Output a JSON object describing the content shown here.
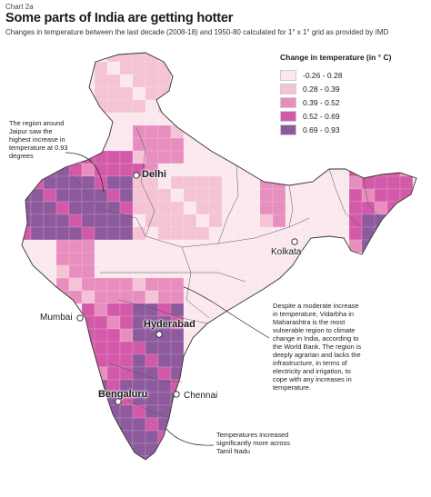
{
  "header": {
    "kicker": "Chart 2a",
    "title": "Some parts of India are getting hotter",
    "subtitle": "Changes in temperature between the last decade (2008-18) and 1950-80 calculated for 1° x 1° grid as provided by IMD"
  },
  "legend": {
    "title": "Change in temperature (in ° C)",
    "items": [
      {
        "label": "-0.26 - 0.28",
        "color": "#fbe8ee"
      },
      {
        "label": "0.28 - 0.39",
        "color": "#f4c3d6"
      },
      {
        "label": "0.39 - 0.52",
        "color": "#e88ebf"
      },
      {
        "label": "0.52 - 0.69",
        "color": "#d35aa9"
      },
      {
        "label": "0.69 - 0.93",
        "color": "#8e5a9e"
      }
    ]
  },
  "cities": {
    "delhi": "Delhi",
    "kolkata": "Kolkata",
    "mumbai": "Mumbai",
    "hyderabad": "Hyderabad",
    "bengaluru": "Bengaluru",
    "chennai": "Chennai"
  },
  "annotations": {
    "jaipur": "The region around Jaipur saw the highest increase in temperature at 0.93 degrees",
    "vidarbha": "Despite a moderate increase in temperature, Vidarbha in Maharashtra is the most vulnerable region to climate change in India, according to the World Bank. The region is deeply agrarian and lacks the infrastructure, in terms of electricity and irrigation, to cope with any increases in temperature.",
    "tamilnadu": "Temperatures increased significantly more across Tamil Nadu"
  }
}
